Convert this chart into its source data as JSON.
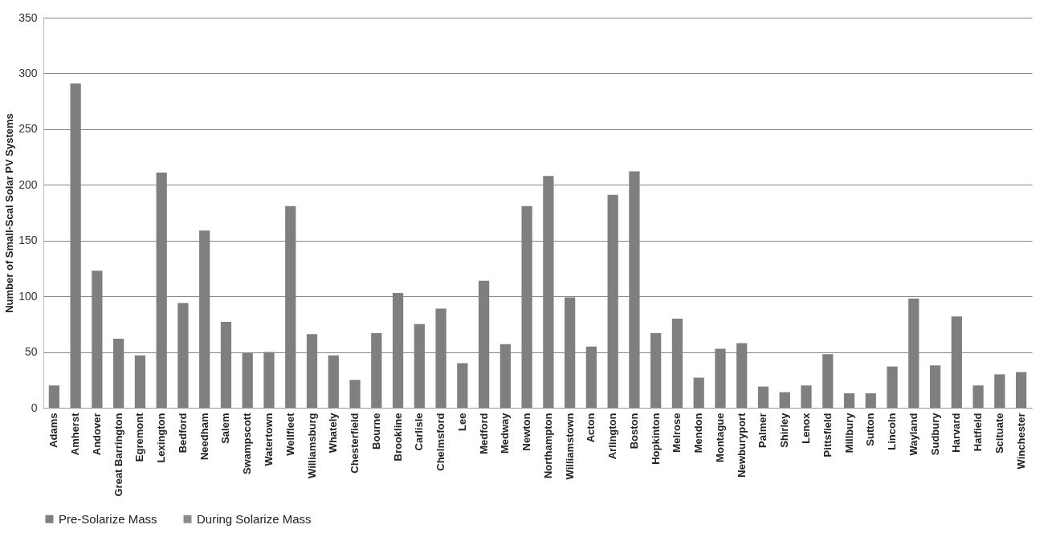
{
  "chart_data": {
    "type": "bar",
    "ylabel": "Number of Small-Scal Solar PV Systems",
    "categories": [
      "Adams",
      "Amherst",
      "Andover",
      "Great Barrington",
      "Egremont",
      "Lexington",
      "Bedford",
      "Needham",
      "Salem",
      "Swampscott",
      "Watertown",
      "Wellfleet",
      "Williamsburg",
      "Whately",
      "Chesterfield",
      "Bourne",
      "Brookline",
      "Carlisle",
      "Chelmsford",
      "Lee",
      "Medford",
      "Medway",
      "Newton",
      "Northampton",
      "Williamstown",
      "Acton",
      "Arlington",
      "Boston",
      "Hopkinton",
      "Melrose",
      "Mendon",
      "Montague",
      "Newburyport",
      "Palmer",
      "Shirley",
      "Lenox",
      "Pittsfield",
      "Millbury",
      "Sutton",
      "Lincoln",
      "Wayland",
      "Sudbury",
      "Harvard",
      "Hatfield",
      "Scituate",
      "Winchester"
    ],
    "series": [
      {
        "name": "Pre-Solarize Mass",
        "color": "#7f7f7f",
        "values": [
          20,
          291,
          123,
          62,
          47,
          211,
          94,
          159,
          77,
          49,
          50,
          181,
          66,
          47,
          25,
          67,
          103,
          75,
          89,
          40,
          114,
          57,
          181,
          208,
          99,
          55,
          191,
          212,
          67,
          80,
          27,
          53,
          58,
          19,
          14,
          20,
          48,
          13,
          13,
          37,
          98,
          38,
          82,
          20,
          30,
          32
        ]
      },
      {
        "name": "During Solarize Mass",
        "color": "#8c8c8c",
        "values": [
          null,
          null,
          null,
          null,
          null,
          null,
          null,
          null,
          null,
          null,
          null,
          null,
          null,
          null,
          null,
          null,
          null,
          null,
          null,
          null,
          null,
          null,
          null,
          null,
          null,
          null,
          null,
          null,
          null,
          null,
          null,
          null,
          null,
          null,
          null,
          null,
          null,
          null,
          null,
          null,
          null,
          null,
          null,
          null,
          null,
          null
        ]
      }
    ],
    "ylim": [
      0,
      350
    ],
    "yticks": [
      0,
      50,
      100,
      150,
      200,
      250,
      300,
      350
    ],
    "grid": "y",
    "legend": "bottom"
  }
}
